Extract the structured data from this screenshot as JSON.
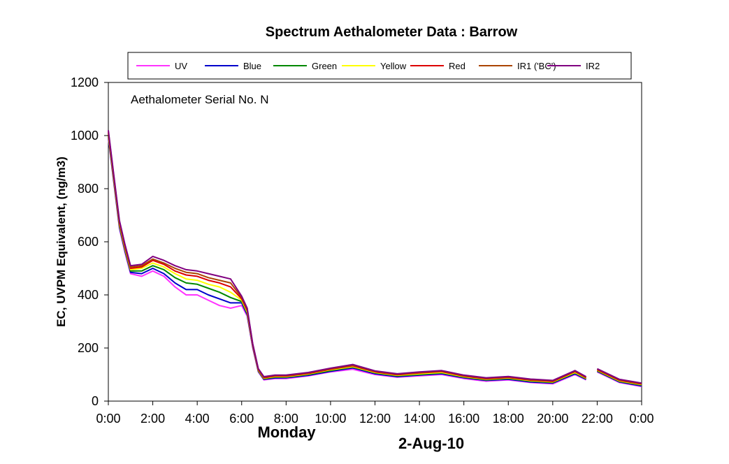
{
  "chart_data": {
    "type": "line",
    "title": "Spectrum Aethalometer Data  :  Barrow",
    "xlabel": "2-Aug-10",
    "day_label": "Monday",
    "ylabel": "EC, UVPM Equivalent, (ng/m3)",
    "annotation": "Aethalometer  Serial No. N",
    "xlim": [
      0,
      24
    ],
    "ylim": [
      0,
      1200
    ],
    "x_ticks": [
      "0:00",
      "2:00",
      "4:00",
      "6:00",
      "8:00",
      "10:00",
      "12:00",
      "14:00",
      "16:00",
      "18:00",
      "20:00",
      "22:00",
      "0:00"
    ],
    "y_ticks": [
      "0",
      "200",
      "400",
      "600",
      "800",
      "1000",
      "1200"
    ],
    "grid": false,
    "legend_position": "top",
    "x": [
      0.0,
      0.25,
      0.5,
      0.75,
      1.0,
      1.5,
      2.0,
      2.5,
      3.0,
      3.5,
      4.0,
      4.5,
      5.0,
      5.5,
      6.0,
      6.25,
      6.5,
      6.75,
      7.0,
      7.5,
      8.0,
      9.0,
      10.0,
      11.0,
      12.0,
      13.0,
      14.0,
      15.0,
      16.0,
      17.0,
      18.0,
      19.0,
      20.0,
      21.0,
      21.5,
      21.75,
      22.0,
      23.0,
      24.0
    ],
    "series": [
      {
        "name": "UV",
        "color": "#ff33ff",
        "values": [
          990,
          820,
          650,
          560,
          480,
          470,
          490,
          470,
          430,
          400,
          400,
          380,
          360,
          350,
          360,
          320,
          200,
          110,
          80,
          85,
          85,
          95,
          110,
          120,
          100,
          90,
          95,
          100,
          85,
          75,
          80,
          70,
          65,
          100,
          80,
          null,
          110,
          70,
          55
        ]
      },
      {
        "name": "Blue",
        "color": "#0000cc",
        "values": [
          995,
          825,
          655,
          565,
          485,
          480,
          500,
          480,
          445,
          420,
          420,
          400,
          385,
          370,
          370,
          325,
          205,
          112,
          82,
          87,
          88,
          97,
          112,
          125,
          103,
          92,
          98,
          103,
          88,
          78,
          82,
          72,
          68,
          103,
          82,
          null,
          112,
          72,
          57
        ]
      },
      {
        "name": "Green",
        "color": "#008800",
        "values": [
          1000,
          830,
          660,
          570,
          490,
          490,
          510,
          495,
          465,
          445,
          440,
          425,
          410,
          390,
          375,
          330,
          208,
          114,
          84,
          90,
          90,
          100,
          115,
          128,
          106,
          95,
          100,
          106,
          90,
          80,
          85,
          75,
          70,
          106,
          84,
          null,
          114,
          74,
          60
        ]
      },
      {
        "name": "Yellow",
        "color": "#ffff00",
        "values": [
          1005,
          835,
          665,
          575,
          495,
          500,
          520,
          505,
          480,
          460,
          455,
          440,
          430,
          410,
          380,
          335,
          210,
          116,
          86,
          92,
          92,
          102,
          118,
          130,
          108,
          97,
          103,
          108,
          92,
          82,
          87,
          77,
          72,
          108,
          86,
          null,
          116,
          76,
          62
        ]
      },
      {
        "name": "Red",
        "color": "#dd0000",
        "values": [
          1010,
          840,
          670,
          580,
          500,
          505,
          530,
          515,
          490,
          475,
          470,
          455,
          445,
          430,
          385,
          340,
          212,
          118,
          88,
          94,
          94,
          104,
          120,
          133,
          110,
          99,
          106,
          111,
          94,
          84,
          89,
          79,
          74,
          111,
          88,
          null,
          118,
          78,
          64
        ]
      },
      {
        "name": "IR1 ('BC')",
        "color": "#aa4400",
        "values": [
          1015,
          845,
          675,
          585,
          505,
          510,
          535,
          520,
          500,
          485,
          480,
          465,
          455,
          445,
          390,
          345,
          214,
          120,
          90,
          96,
          96,
          106,
          122,
          135,
          112,
          101,
          108,
          113,
          96,
          86,
          91,
          81,
          76,
          113,
          90,
          null,
          120,
          80,
          66
        ]
      },
      {
        "name": "IR2",
        "color": "#800080",
        "values": [
          1020,
          850,
          680,
          590,
          510,
          515,
          545,
          530,
          510,
          495,
          490,
          480,
          470,
          460,
          395,
          350,
          216,
          122,
          92,
          98,
          98,
          108,
          124,
          138,
          114,
          103,
          110,
          115,
          98,
          88,
          93,
          83,
          78,
          115,
          92,
          null,
          122,
          82,
          68
        ]
      }
    ]
  }
}
